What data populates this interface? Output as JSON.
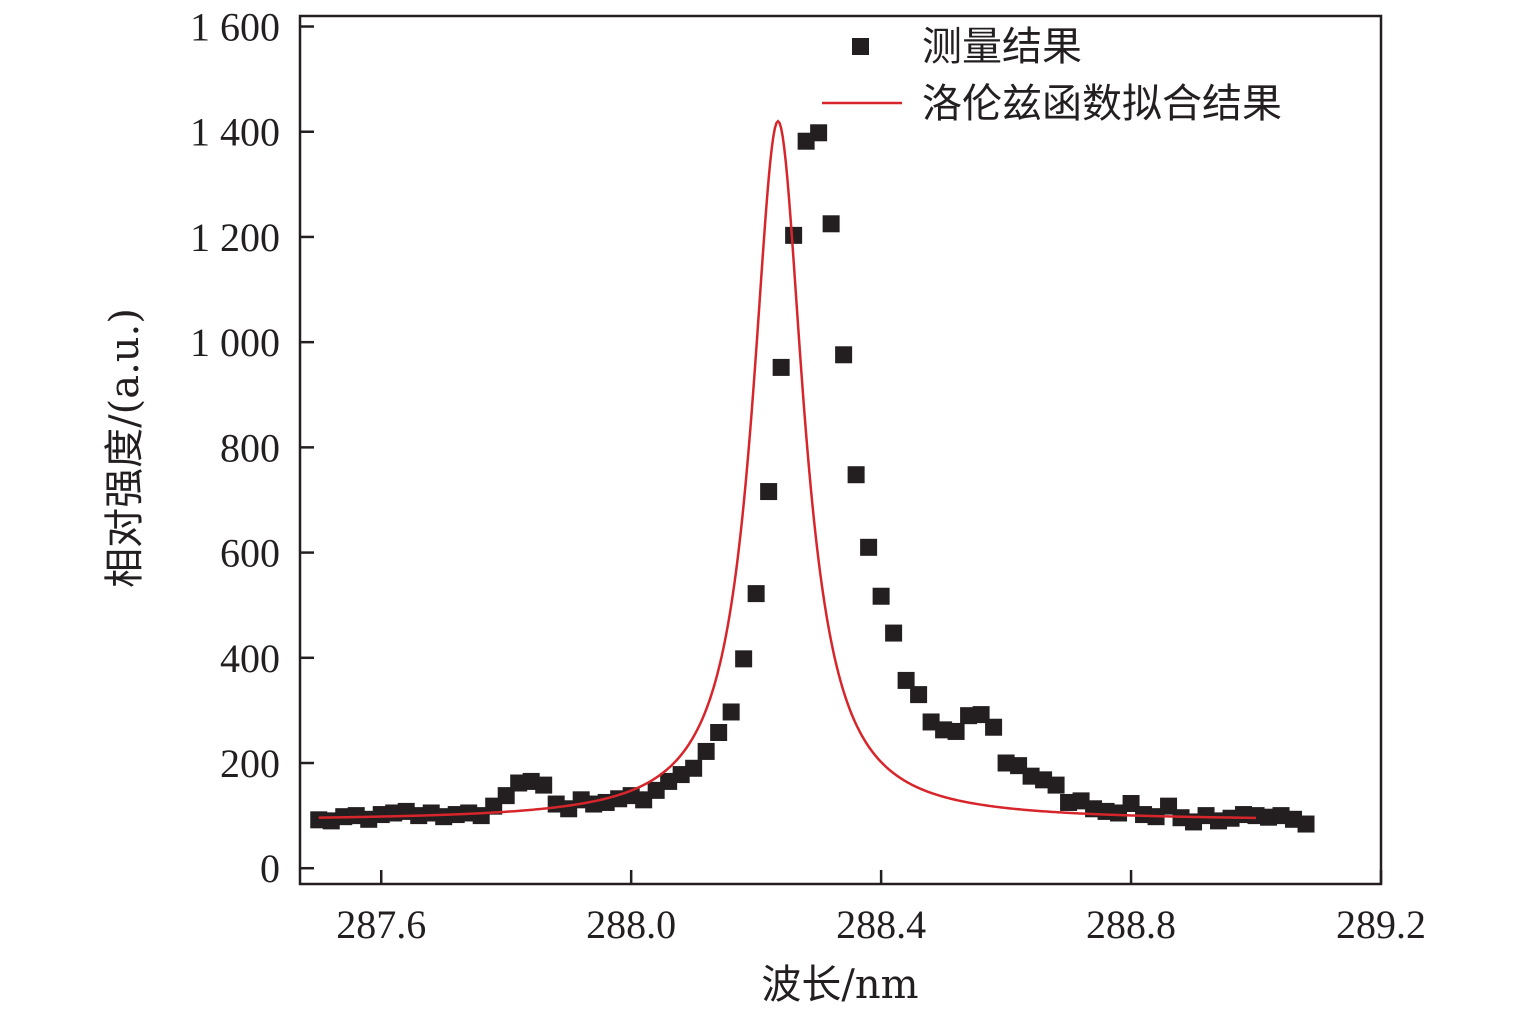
{
  "chart_data": {
    "type": "scatter",
    "xlabel": "波长/nm",
    "ylabel": "相对强度/(a.u.)",
    "xlim": [
      287.47,
      289.2
    ],
    "ylim": [
      -30,
      1620
    ],
    "xticks": [
      287.6,
      288.0,
      288.4,
      288.8,
      289.2
    ],
    "xtick_labels": [
      "287.6",
      "288.0",
      "288.4",
      "288.8",
      "289.2"
    ],
    "yticks": [
      0,
      200,
      400,
      600,
      800,
      1000,
      1200,
      1400,
      1600
    ],
    "ytick_labels": [
      "0",
      "200",
      "400",
      "600",
      "800",
      "1 000",
      "1 200",
      "1 400",
      "1 600"
    ],
    "grid": false,
    "legend_position": "top-right",
    "colors": {
      "measured": "#231f20",
      "fit": "#d7262b",
      "axis": "#231f20"
    },
    "series": [
      {
        "name": "测量结果",
        "type": "scatter",
        "marker": "square",
        "points": [
          [
            287.5,
            92
          ],
          [
            287.52,
            90
          ],
          [
            287.54,
            98
          ],
          [
            287.56,
            100
          ],
          [
            287.58,
            93
          ],
          [
            287.6,
            102
          ],
          [
            287.62,
            105
          ],
          [
            287.64,
            108
          ],
          [
            287.66,
            100
          ],
          [
            287.68,
            105
          ],
          [
            287.7,
            98
          ],
          [
            287.72,
            102
          ],
          [
            287.74,
            105
          ],
          [
            287.76,
            100
          ],
          [
            287.78,
            118
          ],
          [
            287.8,
            138
          ],
          [
            287.82,
            162
          ],
          [
            287.84,
            165
          ],
          [
            287.86,
            158
          ],
          [
            287.88,
            122
          ],
          [
            287.9,
            113
          ],
          [
            287.92,
            130
          ],
          [
            287.94,
            122
          ],
          [
            287.96,
            125
          ],
          [
            287.98,
            132
          ],
          [
            288.0,
            138
          ],
          [
            288.02,
            130
          ],
          [
            288.04,
            148
          ],
          [
            288.06,
            165
          ],
          [
            288.08,
            178
          ],
          [
            288.1,
            190
          ],
          [
            288.12,
            222
          ],
          [
            288.14,
            258
          ],
          [
            288.16,
            297
          ],
          [
            288.18,
            398
          ],
          [
            288.2,
            522
          ],
          [
            288.22,
            716
          ],
          [
            288.24,
            952
          ],
          [
            288.26,
            1203
          ],
          [
            288.28,
            1382
          ],
          [
            288.3,
            1398
          ],
          [
            288.32,
            1225
          ],
          [
            288.34,
            976
          ],
          [
            288.36,
            748
          ],
          [
            288.38,
            610
          ],
          [
            288.4,
            517
          ],
          [
            288.42,
            447
          ],
          [
            288.44,
            357
          ],
          [
            288.46,
            330
          ],
          [
            288.48,
            278
          ],
          [
            288.5,
            263
          ],
          [
            288.52,
            260
          ],
          [
            288.54,
            290
          ],
          [
            288.56,
            292
          ],
          [
            288.58,
            268
          ],
          [
            288.6,
            200
          ],
          [
            288.62,
            195
          ],
          [
            288.64,
            175
          ],
          [
            288.66,
            168
          ],
          [
            288.68,
            158
          ],
          [
            288.7,
            125
          ],
          [
            288.72,
            128
          ],
          [
            288.74,
            113
          ],
          [
            288.76,
            108
          ],
          [
            288.78,
            105
          ],
          [
            288.8,
            123
          ],
          [
            288.82,
            102
          ],
          [
            288.84,
            98
          ],
          [
            288.86,
            118
          ],
          [
            288.88,
            96
          ],
          [
            288.9,
            88
          ],
          [
            288.92,
            100
          ],
          [
            288.94,
            90
          ],
          [
            288.96,
            95
          ],
          [
            288.98,
            102
          ],
          [
            289.0,
            100
          ],
          [
            289.02,
            97
          ],
          [
            289.04,
            100
          ],
          [
            289.06,
            93
          ],
          [
            289.08,
            84
          ]
        ]
      },
      {
        "name": "洛伦兹函数拟合结果",
        "type": "line",
        "x_range": [
          287.5,
          289.0
        ],
        "peak_x": 288.235,
        "peak_y": 1420,
        "baseline_y": 90,
        "fwhm": 0.1
      }
    ]
  }
}
